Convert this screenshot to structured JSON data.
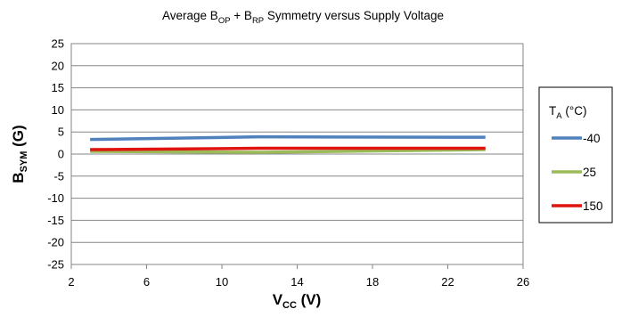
{
  "chart_data": {
    "type": "line",
    "title": {
      "prefix": "Average B",
      "sub1": "OP",
      "mid": " + B",
      "sub2": "RP",
      "suffix": " Symmetry versus Supply Voltage"
    },
    "xlabel": {
      "main": "V",
      "sub": "CC",
      "unit": " (V)"
    },
    "ylabel": {
      "main": "B",
      "sub": "SYM",
      "unit": " (G)"
    },
    "xlim": [
      2,
      26
    ],
    "ylim": [
      -25,
      25
    ],
    "xticks": [
      2,
      6,
      10,
      14,
      18,
      22,
      26
    ],
    "yticks": [
      25,
      20,
      15,
      10,
      5,
      0,
      -5,
      -10,
      -15,
      -20,
      -25
    ],
    "grid": true,
    "legend_position": "right",
    "legend_title": {
      "main": "T",
      "sub": "A",
      "unit": " (°C)"
    },
    "series": [
      {
        "name": "-40",
        "color": "#4f81bd",
        "x": [
          3,
          12,
          24
        ],
        "y": [
          3.3,
          3.9,
          3.8
        ]
      },
      {
        "name": "25",
        "color": "#9bbb59",
        "x": [
          3,
          12,
          24
        ],
        "y": [
          0.6,
          0.4,
          1.0
        ]
      },
      {
        "name": "150",
        "color": "#e0140e",
        "x": [
          3,
          12,
          24
        ],
        "y": [
          1.0,
          1.3,
          1.3
        ]
      }
    ]
  }
}
